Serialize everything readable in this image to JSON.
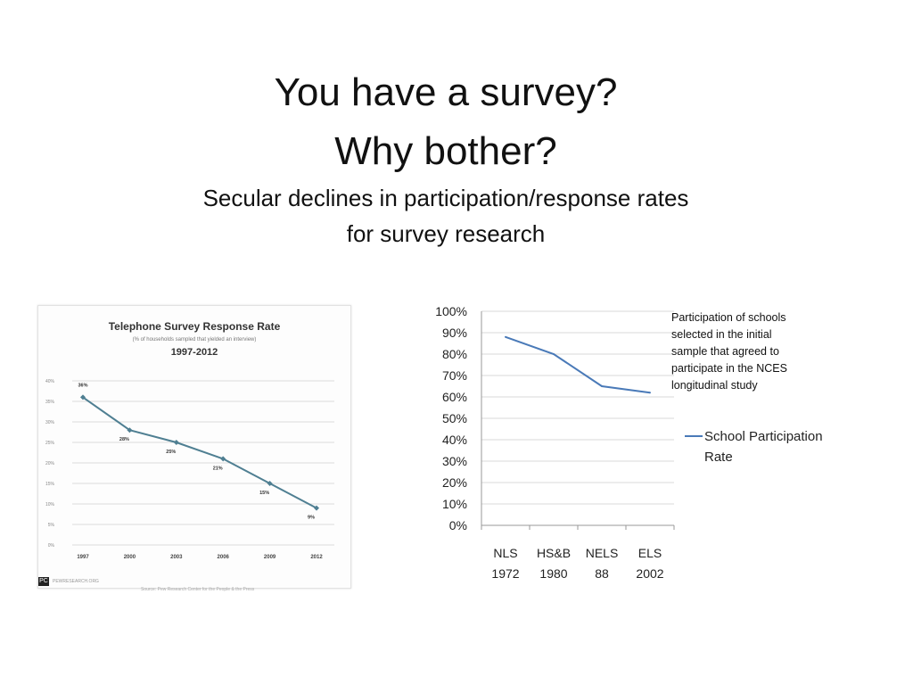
{
  "slide": {
    "title_line1": "You have a survey?",
    "title_line2": "Why bother?",
    "subtitle_line1": "Secular declines in participation/response rates",
    "subtitle_line2": "for survey research"
  },
  "chart_data": [
    {
      "type": "line",
      "title": "Telephone Survey Response Rate",
      "subtitle": "(% of households sampled that yielded an interview)",
      "period": "1997-2012",
      "categories": [
        "1997",
        "2000",
        "2003",
        "2006",
        "2009",
        "2012"
      ],
      "series": [
        {
          "values": [
            36,
            28,
            25,
            21,
            15,
            9
          ],
          "labels": [
            "36%",
            "28%",
            "25%",
            "21%",
            "15%",
            "9%"
          ]
        }
      ],
      "yticks": [
        "0%",
        "5%",
        "10%",
        "15%",
        "20%",
        "25%",
        "30%",
        "35%",
        "40%"
      ],
      "ylim": [
        0,
        40
      ],
      "grid": true,
      "footer_logo": "PC",
      "footer_url": "PEWRESEARCH.ORG",
      "source": "Source: Pew Research Center for the People & the Press",
      "color": "#4f7f92"
    },
    {
      "type": "line",
      "categories": [
        {
          "line1": "NLS",
          "line2": "1972"
        },
        {
          "line1": "HS&B",
          "line2": "1980"
        },
        {
          "line1": "NELS",
          "line2": "88"
        },
        {
          "line1": "ELS",
          "line2": "2002"
        }
      ],
      "series": [
        {
          "name": "School Participation Rate",
          "values": [
            88,
            80,
            65,
            62
          ]
        }
      ],
      "yticks": [
        "0%",
        "10%",
        "20%",
        "30%",
        "40%",
        "50%",
        "60%",
        "70%",
        "80%",
        "90%",
        "100%"
      ],
      "ylim": [
        0,
        100
      ],
      "grid": true,
      "legend_position": "right",
      "annotation": "Participation of schools selected in the initial sample that agreed to participate in the NCES longitudinal study",
      "color": "#4a7ab8"
    }
  ]
}
